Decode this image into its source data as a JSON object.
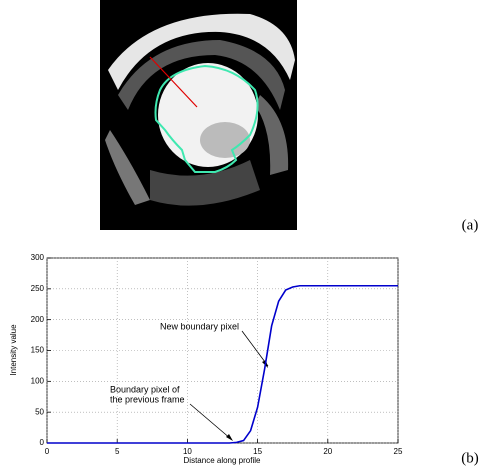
{
  "panel_labels": [
    "(a)",
    "(b)"
  ],
  "chart_data": {
    "type": "line",
    "xlabel": "Distance along profile",
    "ylabel": "Intensity value",
    "x": [
      0,
      12,
      13,
      13.5,
      14,
      14.5,
      15,
      15.5,
      16,
      16.5,
      17,
      17.5,
      18,
      19,
      25
    ],
    "series": [
      {
        "color": "#0000cc",
        "values": [
          0,
          0,
          0,
          1,
          4,
          20,
          58,
          120,
          190,
          230,
          248,
          253,
          255,
          255,
          255
        ]
      }
    ],
    "xlim": [
      0,
      25
    ],
    "ylim": [
      0,
      300
    ],
    "xticks": [
      0,
      5,
      10,
      15,
      20,
      25
    ],
    "yticks": [
      0,
      50,
      100,
      150,
      200,
      250,
      300
    ],
    "grid": true,
    "annotations": [
      {
        "lines": [
          "New boundary pixel"
        ]
      },
      {
        "lines": [
          "Boundary pixel of",
          "the previous frame"
        ]
      }
    ]
  }
}
